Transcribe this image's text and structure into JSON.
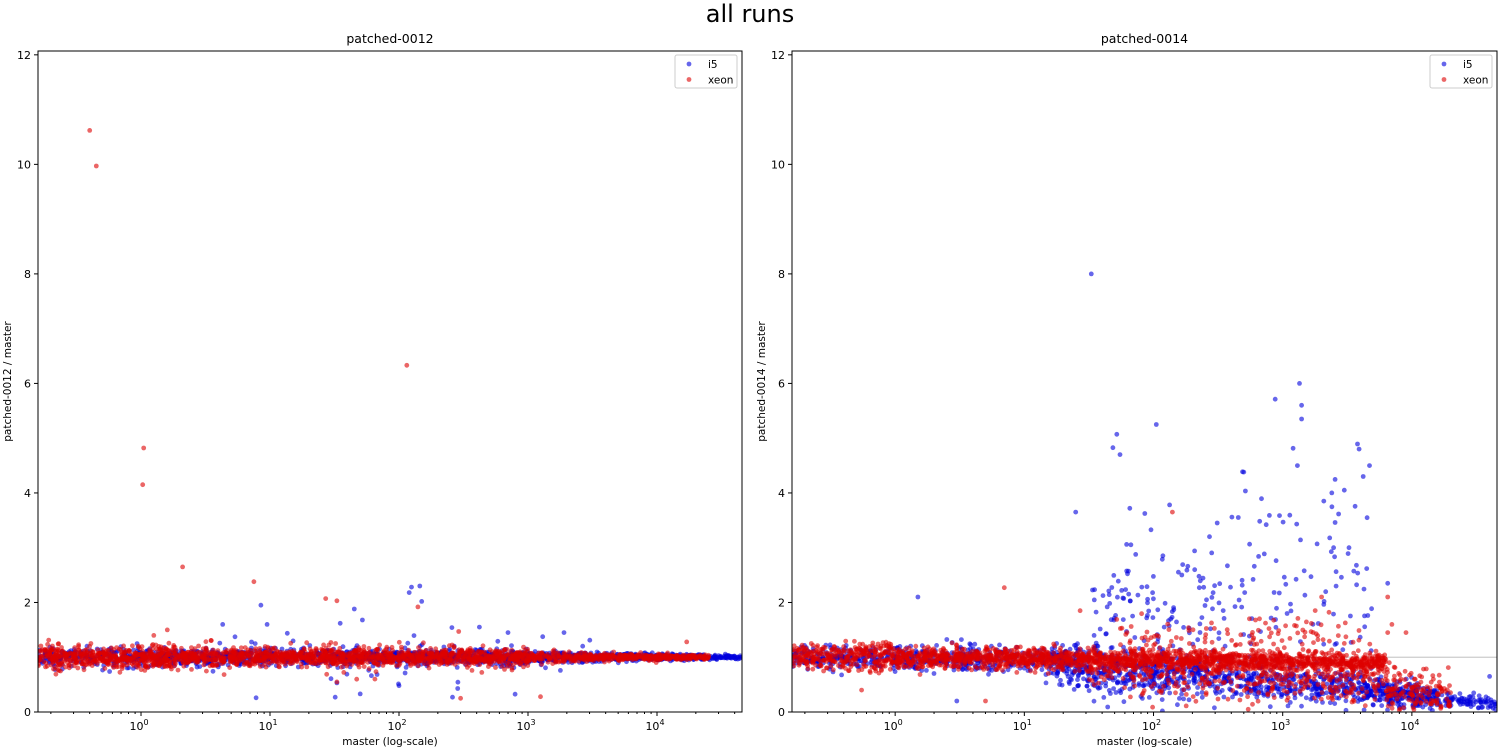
{
  "figure": {
    "title": "all runs"
  },
  "series_colors": {
    "i5": "#0000dd",
    "xeon": "#dd0000"
  },
  "chart_data": [
    {
      "type": "scatter",
      "title": "patched-0012",
      "xlabel": "master (log-scale)",
      "ylabel": "patched-0012 / master",
      "xscale": "log",
      "xlim": [
        0.159,
        45600
      ],
      "ylim": [
        0,
        12.07
      ],
      "reference_line_y": 1,
      "x_ticks": [
        {
          "base": "10",
          "exp": "0"
        },
        {
          "base": "10",
          "exp": "1"
        },
        {
          "base": "10",
          "exp": "2"
        },
        {
          "base": "10",
          "exp": "3"
        },
        {
          "base": "10",
          "exp": "4"
        }
      ],
      "y_ticks": [
        "0",
        "2",
        "4",
        "6",
        "8",
        "10",
        "12"
      ],
      "legend": {
        "placement": "top-right",
        "entries": [
          "i5",
          "xeon"
        ]
      },
      "series": [
        {
          "name": "i5",
          "clusters": [
            {
              "logx": [
                -0.8,
                0.0
              ],
              "y_mean": [
                1.0,
                1.0
              ],
              "y_sd": [
                0.09,
                0.09
              ],
              "n": 200
            },
            {
              "logx": [
                0.0,
                3.0
              ],
              "y_mean": [
                1.0,
                1.0
              ],
              "y_sd": [
                0.08,
                0.07
              ],
              "n": 900
            },
            {
              "logx": [
                3.0,
                4.65
              ],
              "y_mean": [
                1.0,
                1.0
              ],
              "y_sd": [
                0.05,
                0.02
              ],
              "n": 500
            },
            {
              "logx": [
                0.5,
                3.5
              ],
              "y_mean": [
                1.0,
                1.0
              ],
              "y_sd": [
                0.25,
                0.2
              ],
              "n": 90
            }
          ],
          "points": [
            [
              125,
              2.28
            ],
            [
              145,
              2.3
            ],
            [
              150,
              2.02
            ],
            [
              120,
              2.18
            ],
            [
              8.5,
              1.95
            ],
            [
              9.5,
              1.6
            ],
            [
              4.3,
              1.6
            ],
            [
              7.8,
              0.26
            ],
            [
              32,
              0.27
            ],
            [
              50,
              0.33
            ],
            [
              100,
              0.48
            ],
            [
              285,
              0.43
            ],
            [
              260,
              0.27
            ],
            [
              45,
              1.88
            ],
            [
              52,
              1.68
            ],
            [
              35,
              1.62
            ],
            [
              700,
              1.45
            ],
            [
              1900,
              1.45
            ],
            [
              420,
              1.55
            ]
          ]
        },
        {
          "name": "xeon",
          "clusters": [
            {
              "logx": [
                -0.8,
                0.0
              ],
              "y_mean": [
                1.02,
                1.0
              ],
              "y_sd": [
                0.12,
                0.1
              ],
              "n": 350
            },
            {
              "logx": [
                0.0,
                3.0
              ],
              "y_mean": [
                1.0,
                1.0
              ],
              "y_sd": [
                0.09,
                0.07
              ],
              "n": 1300
            },
            {
              "logx": [
                3.0,
                4.4
              ],
              "y_mean": [
                1.0,
                1.0
              ],
              "y_sd": [
                0.05,
                0.02
              ],
              "n": 500
            },
            {
              "logx": [
                0.0,
                3.0
              ],
              "y_mean": [
                1.0,
                1.0
              ],
              "y_sd": [
                0.2,
                0.18
              ],
              "n": 80
            }
          ],
          "points": [
            [
              0.4,
              10.62
            ],
            [
              0.45,
              9.97
            ],
            [
              1.05,
              4.82
            ],
            [
              1.03,
              4.15
            ],
            [
              2.1,
              2.65
            ],
            [
              7.5,
              2.38
            ],
            [
              115,
              6.33
            ],
            [
              27,
              2.07
            ],
            [
              33,
              2.03
            ],
            [
              1.6,
              1.5
            ],
            [
              290,
              1.47
            ],
            [
              300,
              0.25
            ],
            [
              1250,
              0.28
            ],
            [
              17000,
              1.28
            ],
            [
              140,
              1.92
            ],
            [
              65,
              0.6
            ],
            [
              33,
              0.55
            ]
          ]
        }
      ]
    },
    {
      "type": "scatter",
      "title": "patched-0014",
      "xlabel": "master (log-scale)",
      "ylabel": "patched-0014 / master",
      "xscale": "log",
      "xlim": [
        0.159,
        45600
      ],
      "ylim": [
        0,
        12.07
      ],
      "reference_line_y": 1,
      "x_ticks": [
        {
          "base": "10",
          "exp": "0"
        },
        {
          "base": "10",
          "exp": "1"
        },
        {
          "base": "10",
          "exp": "2"
        },
        {
          "base": "10",
          "exp": "3"
        },
        {
          "base": "10",
          "exp": "4"
        }
      ],
      "y_ticks": [
        "0",
        "2",
        "4",
        "6",
        "8",
        "10",
        "12"
      ],
      "legend": {
        "placement": "top-right",
        "entries": [
          "i5",
          "xeon"
        ]
      },
      "series": [
        {
          "name": "i5",
          "clusters": [
            {
              "logx": [
                -0.8,
                1.4
              ],
              "y_mean": [
                1.0,
                0.95
              ],
              "y_sd": [
                0.1,
                0.12
              ],
              "n": 550
            },
            {
              "logx": [
                1.2,
                4.2
              ],
              "y_mean": [
                0.85,
                0.3
              ],
              "y_sd": [
                0.22,
                0.12
              ],
              "n": 1000
            },
            {
              "logx": [
                1.5,
                3.7
              ],
              "y_mean": [
                1.6,
                2.4
              ],
              "y_sd": [
                0.8,
                1.1
              ],
              "n": 260
            },
            {
              "logx": [
                3.8,
                4.65
              ],
              "y_mean": [
                0.3,
                0.15
              ],
              "y_sd": [
                0.1,
                0.06
              ],
              "n": 160
            }
          ],
          "points": [
            [
              33,
              8.0
            ],
            [
              105,
              5.25
            ],
            [
              52,
              5.07
            ],
            [
              55,
              4.7
            ],
            [
              1350,
              6.0
            ],
            [
              1400,
              5.6
            ],
            [
              1400,
              5.35
            ],
            [
              3900,
              4.8
            ],
            [
              4200,
              4.3
            ],
            [
              4700,
              4.5
            ],
            [
              500,
              4.38
            ],
            [
              1300,
              4.5
            ],
            [
              25,
              3.65
            ],
            [
              2400,
              4.0
            ],
            [
              3000,
              4.05
            ],
            [
              6500,
              2.35
            ],
            [
              1.5,
              2.1
            ],
            [
              3,
              0.2
            ],
            [
              40000,
              0.65
            ]
          ]
        },
        {
          "name": "xeon",
          "clusters": [
            {
              "logx": [
                -0.8,
                0.0
              ],
              "y_mean": [
                1.02,
                1.02
              ],
              "y_sd": [
                0.13,
                0.12
              ],
              "n": 300
            },
            {
              "logx": [
                0.0,
                3.8
              ],
              "y_mean": [
                1.0,
                0.9
              ],
              "y_sd": [
                0.1,
                0.08
              ],
              "n": 1700
            },
            {
              "logx": [
                1.5,
                4.3
              ],
              "y_mean": [
                0.75,
                0.45
              ],
              "y_sd": [
                0.22,
                0.18
              ],
              "n": 450
            },
            {
              "logx": [
                1.7,
                3.6
              ],
              "y_mean": [
                1.3,
                1.4
              ],
              "y_sd": [
                0.2,
                0.2
              ],
              "n": 120
            },
            {
              "logx": [
                3.8,
                4.3
              ],
              "y_mean": [
                0.3,
                0.2
              ],
              "y_sd": [
                0.12,
                0.1
              ],
              "n": 60
            }
          ],
          "points": [
            [
              7,
              2.27
            ],
            [
              27,
              1.85
            ],
            [
              140,
              3.65
            ],
            [
              6500,
              2.1
            ],
            [
              6500,
              1.45
            ],
            [
              9000,
              1.45
            ],
            [
              2000,
              2.1
            ],
            [
              0.55,
              0.4
            ],
            [
              5,
              0.2
            ],
            [
              7000,
              1.6
            ]
          ]
        }
      ]
    }
  ]
}
